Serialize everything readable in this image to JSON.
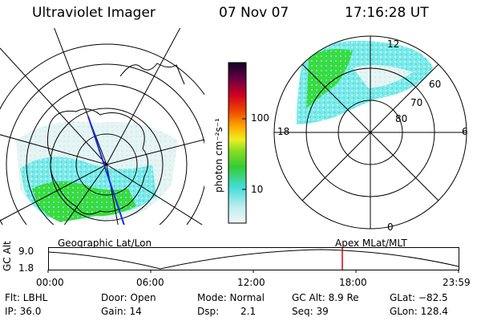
{
  "header": {
    "instrument": "Ultraviolet Imager",
    "date": "07 Nov 07",
    "time": "17:16:28 UT"
  },
  "left_panel": {
    "caption": "Geographic Lat/Lon"
  },
  "right_panel": {
    "caption": "Apex MLat/MLT",
    "lat_labels": [
      "60",
      "70",
      "80"
    ],
    "mlt_labels": {
      "top": "12",
      "bottom": "0",
      "left": "18",
      "right": "6"
    }
  },
  "colorbar": {
    "unit_label": "photon cm⁻²s⁻¹",
    "ticks": [
      "100",
      "10"
    ]
  },
  "altitude_plot": {
    "ylabel": "GC Alt",
    "y_ticks": [
      "9.0",
      "1.8"
    ],
    "x_ticks": [
      "00:00",
      "06:00",
      "12:00",
      "18:00",
      "23:59"
    ]
  },
  "params": {
    "filter": "Flt: LBHL",
    "ip": "IP: 36.0",
    "door": "Door: Open",
    "gain": "Gain: 14",
    "mode": "Mode: Normal",
    "dsp_label": "Dsp:",
    "dsp_value": "2.1",
    "gc_alt": "GC Alt: 8.9 Re",
    "seq": "Seq: 39",
    "glat": "GLat: −82.5",
    "glon": "GLon: 128.4"
  },
  "colors": {
    "auroral_green": "#33dd33",
    "auroral_cyan": "#66e8e8",
    "auroral_lightcyan": "#bff3f3",
    "marker_red": "#dd0000"
  }
}
